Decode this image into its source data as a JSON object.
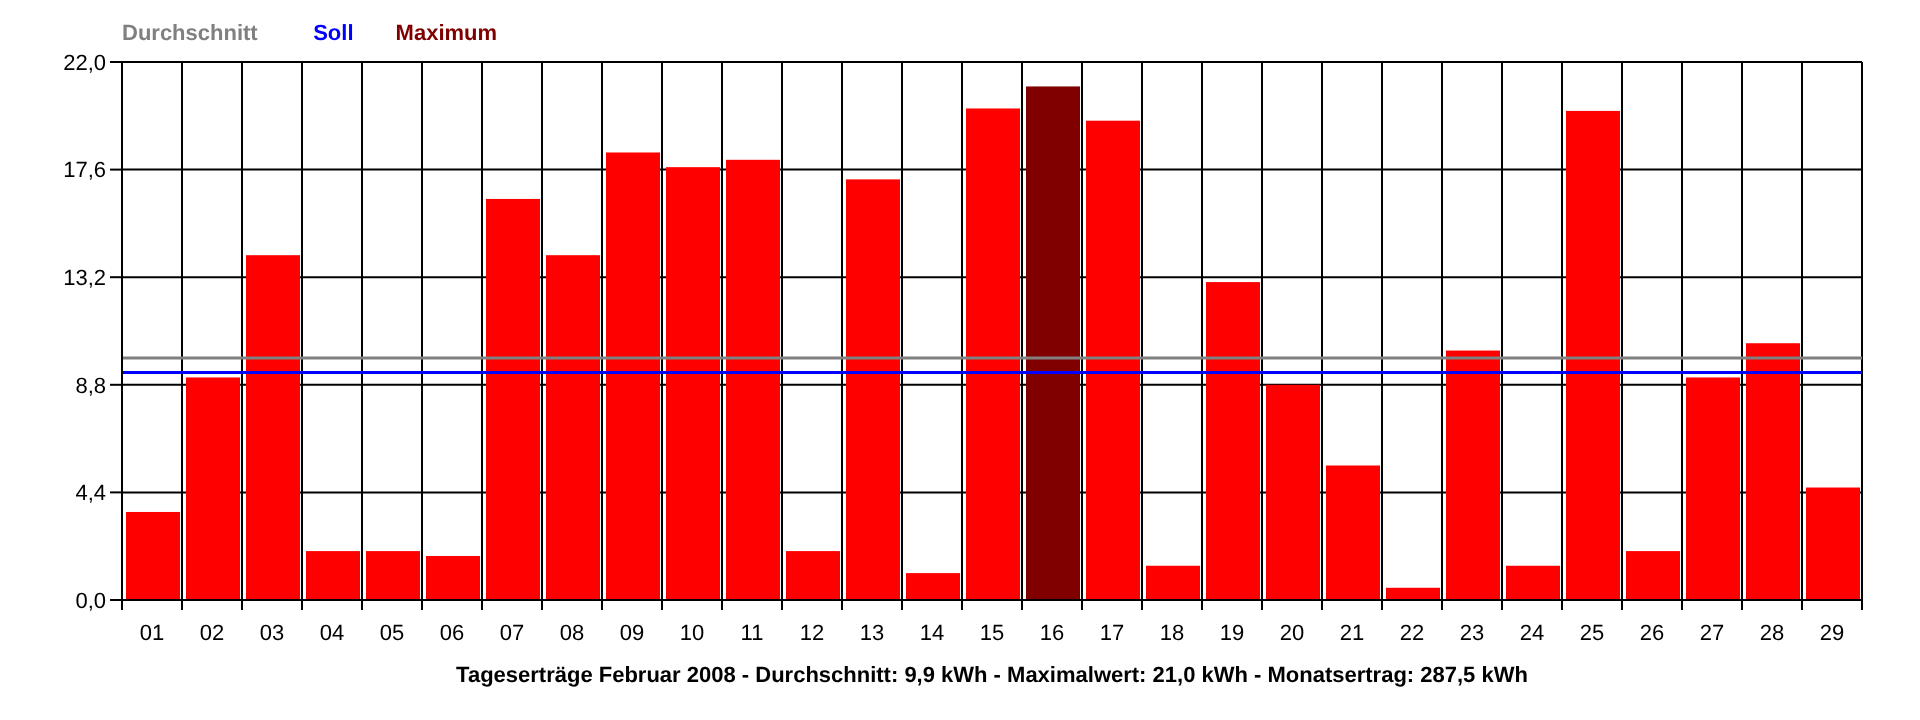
{
  "chart_data": {
    "type": "bar",
    "title": "Tageserträge Februar 2008 - Durchschnitt: 9,9 kWh - Maximalwert: 21,0 kWh - Monatsertrag: 287,5 kWh",
    "categories": [
      "01",
      "02",
      "03",
      "04",
      "05",
      "06",
      "07",
      "08",
      "09",
      "10",
      "11",
      "12",
      "13",
      "14",
      "15",
      "16",
      "17",
      "18",
      "19",
      "20",
      "21",
      "22",
      "23",
      "24",
      "25",
      "26",
      "27",
      "28",
      "29"
    ],
    "values": [
      3.6,
      9.1,
      14.1,
      2.0,
      2.0,
      1.8,
      16.4,
      14.1,
      18.3,
      17.7,
      18.0,
      2.0,
      17.2,
      1.1,
      20.1,
      21.0,
      19.6,
      1.4,
      13.0,
      8.8,
      5.5,
      0.5,
      10.2,
      1.4,
      20.0,
      2.0,
      9.1,
      10.5,
      4.6
    ],
    "colors": [
      "#ff0000",
      "#ff0000",
      "#ff0000",
      "#ff0000",
      "#ff0000",
      "#ff0000",
      "#ff0000",
      "#ff0000",
      "#ff0000",
      "#ff0000",
      "#ff0000",
      "#ff0000",
      "#ff0000",
      "#ff0000",
      "#ff0000",
      "#800000",
      "#ff0000",
      "#ff0000",
      "#ff0000",
      "#ff0000",
      "#ff0000",
      "#ff0000",
      "#ff0000",
      "#ff0000",
      "#ff0000",
      "#ff0000",
      "#ff0000",
      "#ff0000",
      "#ff0000"
    ],
    "ylim": [
      0,
      22
    ],
    "yticks": [
      {
        "value": 0,
        "label": "0,0"
      },
      {
        "value": 4.4,
        "label": "4,4"
      },
      {
        "value": 8.8,
        "label": "8,8"
      },
      {
        "value": 13.2,
        "label": "13,2"
      },
      {
        "value": 17.6,
        "label": "17,6"
      },
      {
        "value": 22,
        "label": "22,0"
      }
    ],
    "grid": true,
    "legend": "top left",
    "ref_lines": [
      {
        "axis": "y",
        "value": 9.9,
        "label": "Durchschnitt",
        "color": "#808080"
      },
      {
        "axis": "y",
        "value": 9.3,
        "label": "Soll",
        "color": "#0000ff"
      }
    ],
    "annotations": [
      "Maximum"
    ]
  }
}
